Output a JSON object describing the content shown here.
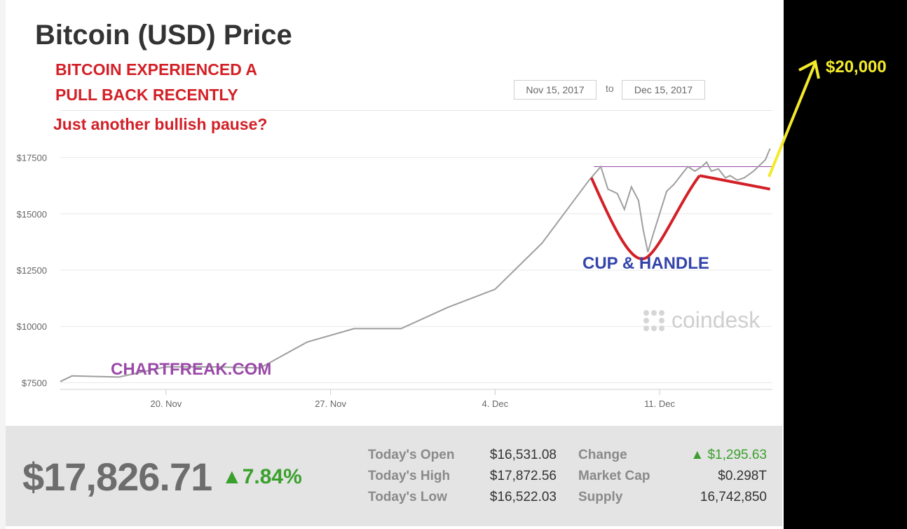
{
  "title": "Bitcoin (USD) Price",
  "annotations": {
    "line1": "BITCOIN EXPERIENCED A",
    "line2": "PULL BACK RECENTLY",
    "line3": "Just another bullish pause?",
    "pattern": "CUP & HANDLE",
    "watermark": "CHARTFREAK.COM",
    "target": "$20,000"
  },
  "date_range": {
    "from": "Nov 15, 2017",
    "to_word": "to",
    "to": "Dec 15, 2017"
  },
  "brand": "coindesk",
  "colors": {
    "price_line": "#9e9e9e",
    "annotation_red": "#d32027",
    "pattern_blue": "#3344aa",
    "target_yellow": "#f4ea2a",
    "resistance": "#9a4aa8",
    "positive_green": "#3aa02c"
  },
  "stats": {
    "price": "$17,826.71",
    "change_pct": "▲7.84%",
    "rows": [
      {
        "label": "Today's Open",
        "value": "$16,531.08",
        "label2": "Change",
        "value2": "▲ $1,295.63"
      },
      {
        "label": "Today's High",
        "value": "$17,872.56",
        "label2": "Market Cap",
        "value2": "$0.298T"
      },
      {
        "label": "Today's Low",
        "value": "$16,522.03",
        "label2": "Supply",
        "value2": "16,742,850"
      }
    ]
  },
  "chart_data": {
    "type": "line",
    "xlabel": "",
    "ylabel": "",
    "x_ticks": [
      {
        "label": "20. Nov",
        "day": 20
      },
      {
        "label": "27. Nov",
        "day": 27
      },
      {
        "label": "4. Dec",
        "day": 34
      },
      {
        "label": "11. Dec",
        "day": 41
      }
    ],
    "y_ticks": [
      {
        "label": "$7500",
        "value": 7500
      },
      {
        "label": "$10000",
        "value": 10000
      },
      {
        "label": "$12500",
        "value": 12500
      },
      {
        "label": "$15000",
        "value": 15000
      },
      {
        "label": "$17500",
        "value": 17500
      }
    ],
    "xlim": [
      15.5,
      45.8
    ],
    "ylim": [
      7200,
      17800
    ],
    "grid": true,
    "series": [
      {
        "values": [
          [
            15.5,
            7550
          ],
          [
            16,
            7800
          ],
          [
            18,
            7750
          ],
          [
            20,
            8200
          ],
          [
            22,
            8200
          ],
          [
            24,
            8150
          ],
          [
            26,
            9300
          ],
          [
            28,
            9900
          ],
          [
            30,
            9900
          ],
          [
            32,
            10850
          ],
          [
            34,
            11650
          ],
          [
            36,
            13700
          ],
          [
            38,
            16500
          ],
          [
            38.5,
            17100
          ],
          [
            38.8,
            16100
          ],
          [
            39.2,
            15900
          ],
          [
            39.5,
            15200
          ],
          [
            39.8,
            16200
          ],
          [
            40.1,
            15600
          ],
          [
            40.3,
            14300
          ],
          [
            40.5,
            13300
          ],
          [
            40.7,
            14000
          ],
          [
            41,
            15000
          ],
          [
            41.3,
            16000
          ],
          [
            41.6,
            16300
          ],
          [
            41.9,
            16700
          ],
          [
            42.2,
            17100
          ],
          [
            42.5,
            16900
          ],
          [
            42.8,
            17100
          ],
          [
            43,
            17300
          ],
          [
            43.2,
            16900
          ],
          [
            43.5,
            17000
          ],
          [
            43.8,
            16600
          ],
          [
            44,
            16700
          ],
          [
            44.3,
            16500
          ],
          [
            44.6,
            16600
          ],
          [
            45,
            16900
          ],
          [
            45.3,
            17200
          ],
          [
            45.5,
            17400
          ],
          [
            45.7,
            17900
          ]
        ]
      }
    ],
    "resistance_level": 17100
  }
}
